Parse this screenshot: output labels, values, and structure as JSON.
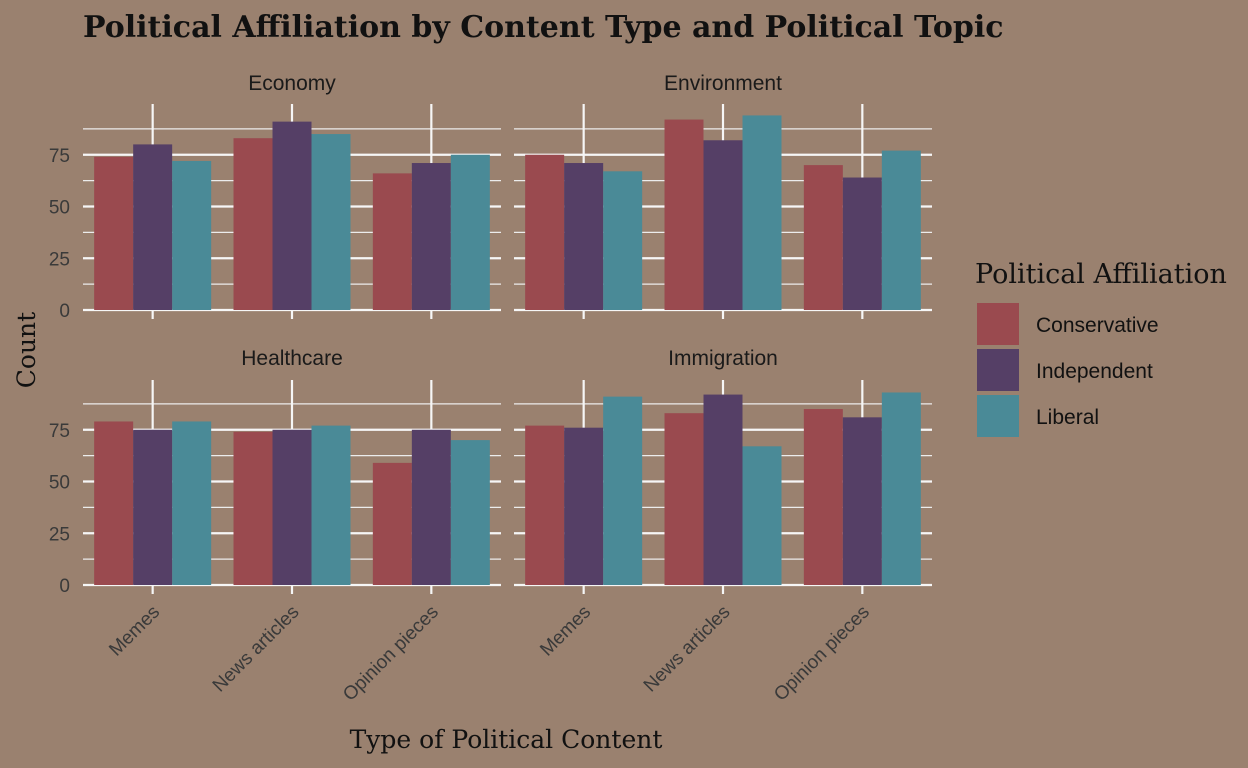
{
  "chart_data": {
    "type": "bar",
    "title": "Political Affiliation by Content Type and Political Topic",
    "xlabel": "Type of Political Content",
    "ylabel": "Count",
    "ylim": [
      0,
      100
    ],
    "yticks": [
      "0",
      "25",
      "50",
      "75"
    ],
    "categories": [
      "Memes",
      "News articles",
      "Opinion pieces"
    ],
    "legend_title": "Political Affiliation",
    "legend_position": "right",
    "grid": true,
    "colors": [
      "#9a4a4f",
      "#553f66",
      "#4a8a97"
    ],
    "series_names": [
      "Conservative",
      "Independent",
      "Liberal"
    ],
    "facets": [
      {
        "topic": "Economy",
        "values": [
          [
            74,
            83,
            66
          ],
          [
            80,
            91,
            71
          ],
          [
            72,
            85,
            75
          ]
        ]
      },
      {
        "topic": "Environment",
        "values": [
          [
            75,
            92,
            70
          ],
          [
            71,
            82,
            64
          ],
          [
            67,
            94,
            77
          ]
        ]
      },
      {
        "topic": "Healthcare",
        "values": [
          [
            79,
            74,
            59
          ],
          [
            75,
            75,
            75
          ],
          [
            79,
            77,
            70
          ]
        ]
      },
      {
        "topic": "Immigration",
        "values": [
          [
            77,
            83,
            85
          ],
          [
            76,
            92,
            81
          ],
          [
            91,
            67,
            93
          ]
        ]
      }
    ]
  }
}
